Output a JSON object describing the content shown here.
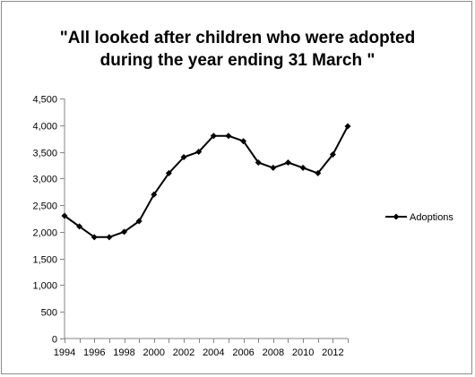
{
  "chart_data": {
    "type": "line",
    "title_line1": "\"All looked after children who were adopted",
    "title_line2": "during the year ending 31 March \"",
    "xlabel": "",
    "ylabel": "",
    "x": [
      1994,
      1995,
      1996,
      1997,
      1998,
      1999,
      2000,
      2001,
      2002,
      2003,
      2004,
      2005,
      2006,
      2007,
      2008,
      2009,
      2010,
      2011,
      2012,
      2013
    ],
    "x_tick_labels": [
      "1994",
      "1996",
      "1998",
      "2000",
      "2002",
      "2004",
      "2006",
      "2008",
      "2010",
      "2012"
    ],
    "y_tick_labels": [
      "0",
      "500",
      "1,000",
      "1,500",
      "2,000",
      "2,500",
      "3,000",
      "3,500",
      "4,000",
      "4,500"
    ],
    "y_ticks": [
      0,
      500,
      1000,
      1500,
      2000,
      2500,
      3000,
      3500,
      4000,
      4500
    ],
    "ylim": [
      0,
      4500
    ],
    "grid": false,
    "legend_position": "right",
    "series": [
      {
        "name": "Adoptions",
        "color": "#000000",
        "marker": "diamond",
        "values": [
          2300,
          2100,
          1900,
          1900,
          2000,
          2200,
          2700,
          3100,
          3400,
          3500,
          3800,
          3800,
          3700,
          3300,
          3200,
          3300,
          3200,
          3100,
          3450,
          3980
        ]
      }
    ]
  }
}
